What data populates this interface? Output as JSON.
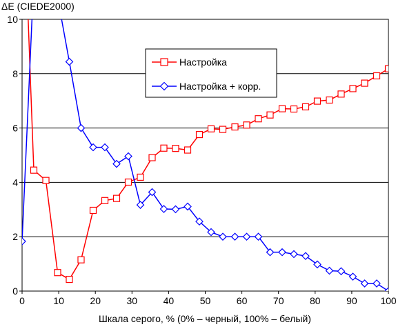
{
  "chart_data": {
    "type": "line",
    "ylabel": "ΔE (CIEDE2000)",
    "xlabel": "Шкала серого, % (0% – черный, 100% – белый)",
    "xlim": [
      0,
      100
    ],
    "ylim": [
      0,
      10
    ],
    "xticks": [
      0,
      10,
      20,
      30,
      40,
      50,
      60,
      70,
      80,
      90,
      100
    ],
    "yticks": [
      0,
      2,
      4,
      6,
      8,
      10
    ],
    "grid": "horizontal",
    "legend_position": "top-center",
    "series": [
      {
        "name": "Настройка",
        "color": "#ff0000",
        "marker": "square",
        "x": [
          0,
          3.2,
          6.5,
          9.7,
          12.9,
          16.1,
          19.4,
          22.6,
          25.8,
          29.0,
          32.3,
          35.5,
          38.7,
          41.9,
          45.2,
          48.4,
          51.6,
          54.8,
          58.1,
          61.3,
          64.5,
          67.7,
          71.0,
          74.2,
          77.4,
          80.6,
          83.9,
          87.1,
          90.3,
          93.5,
          96.8,
          100
        ],
        "y": [
          16,
          4.45,
          4.07,
          0.68,
          0.43,
          1.15,
          2.97,
          3.33,
          3.41,
          4.01,
          4.19,
          4.91,
          5.26,
          5.25,
          5.19,
          5.76,
          5.97,
          5.95,
          6.04,
          6.11,
          6.34,
          6.48,
          6.71,
          6.7,
          6.78,
          6.99,
          7.03,
          7.25,
          7.45,
          7.65,
          7.92,
          8.18
        ]
      },
      {
        "name": "Настройка + корр.",
        "color": "#0000ff",
        "marker": "diamond",
        "x": [
          0,
          3.2,
          6.5,
          9.7,
          12.9,
          16.1,
          19.4,
          22.6,
          25.8,
          29.0,
          32.3,
          35.5,
          38.7,
          41.9,
          45.2,
          48.4,
          51.6,
          54.8,
          58.1,
          61.3,
          64.5,
          67.7,
          71.0,
          74.2,
          77.4,
          80.6,
          83.9,
          87.1,
          90.3,
          93.5,
          96.8,
          100
        ],
        "y": [
          1.83,
          11.5,
          13.5,
          10.8,
          8.44,
          6.0,
          5.29,
          5.29,
          4.68,
          4.96,
          3.17,
          3.64,
          3.02,
          3.01,
          3.11,
          2.56,
          2.17,
          2.0,
          2.0,
          2.0,
          2.0,
          1.43,
          1.43,
          1.36,
          1.29,
          0.98,
          0.75,
          0.73,
          0.53,
          0.28,
          0.28,
          0.0
        ]
      }
    ]
  }
}
